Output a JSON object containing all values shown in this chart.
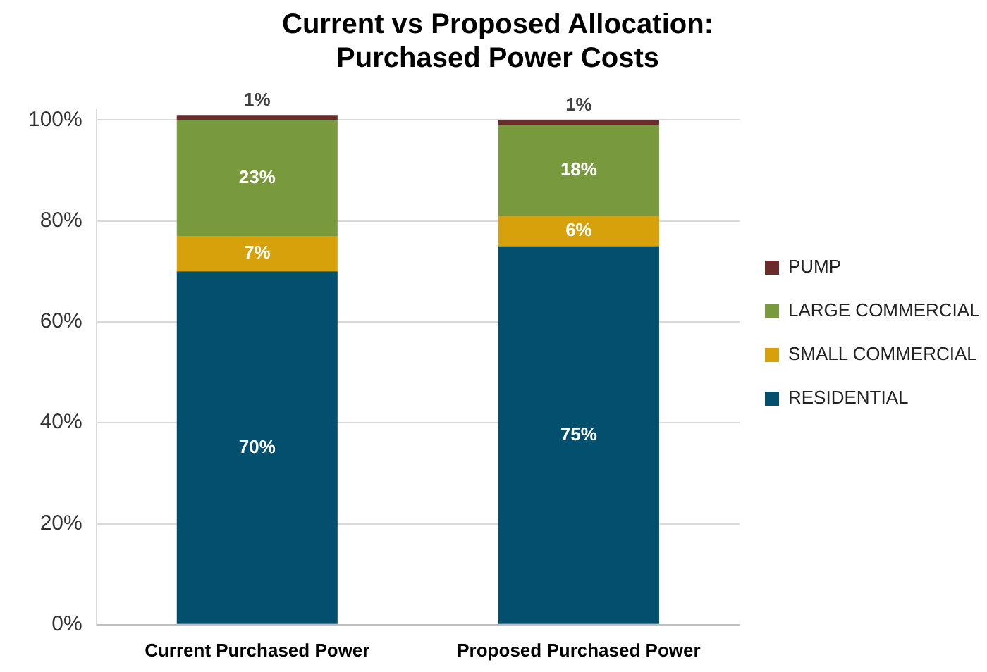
{
  "chart_data": {
    "type": "bar",
    "title": "Current vs Proposed Allocation:\nPurchased Power Costs",
    "categories": [
      "Current Purchased Power",
      "Proposed Purchased Power"
    ],
    "stacked": true,
    "series": [
      {
        "name": "RESIDENTIAL",
        "color": "#02506e",
        "values": [
          70,
          75
        ],
        "value_labels": [
          "70%",
          "75%"
        ]
      },
      {
        "name": "SMALL COMMERCIAL",
        "color": "#d6a10a",
        "values": [
          7,
          6
        ],
        "value_labels": [
          "7%",
          "6%"
        ]
      },
      {
        "name": "LARGE COMMERCIAL",
        "color": "#789a3c",
        "values": [
          23,
          18
        ],
        "value_labels": [
          "23%",
          "18%"
        ]
      },
      {
        "name": "PUMP",
        "color": "#6b2b2b",
        "values": [
          1,
          1
        ],
        "value_labels": [
          "1%",
          "1%"
        ]
      }
    ],
    "ylim": [
      0,
      102
    ],
    "yticks": [
      {
        "value": 0,
        "label": "0%"
      },
      {
        "value": 20,
        "label": "20%"
      },
      {
        "value": 40,
        "label": "40%"
      },
      {
        "value": 60,
        "label": "60%"
      },
      {
        "value": 80,
        "label": "80%"
      },
      {
        "value": 100,
        "label": "100%"
      }
    ],
    "grid": "y",
    "legend": "right"
  }
}
